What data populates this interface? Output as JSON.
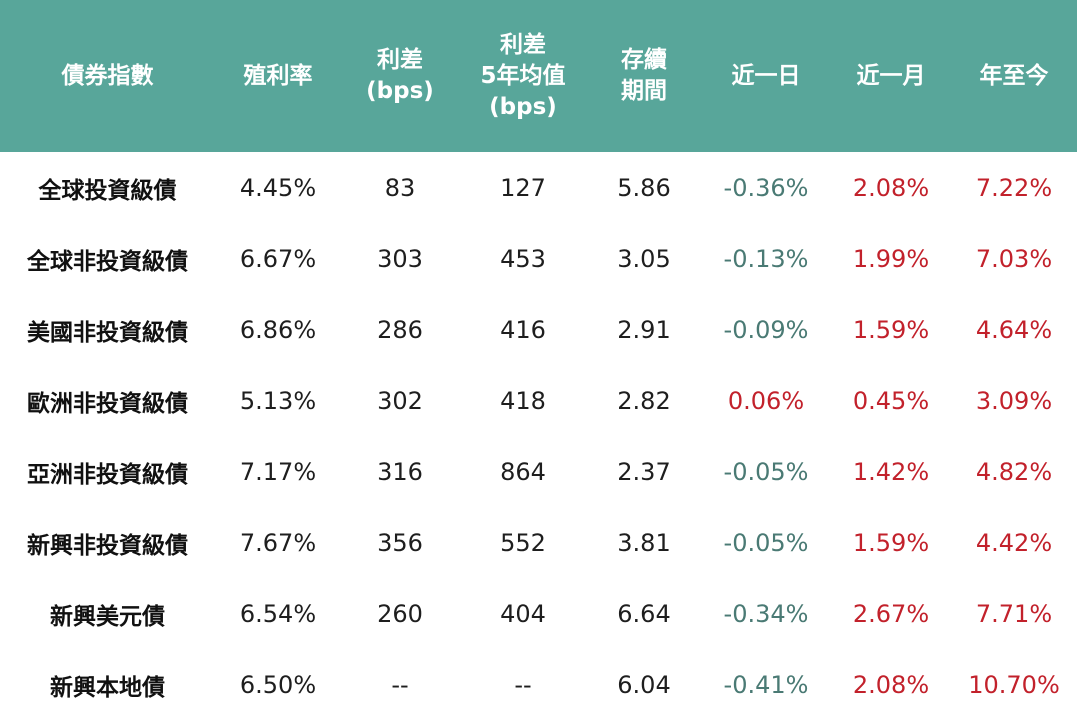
{
  "colors": {
    "header_bg": "#58a69a",
    "negative": "#4a7a74",
    "positive": "#c2212b"
  },
  "headers": [
    [
      "債券指數"
    ],
    [
      "殖利率"
    ],
    [
      "利差",
      "(bps)"
    ],
    [
      "利差",
      "5年均值",
      "(bps)"
    ],
    [
      "存續",
      "期間"
    ],
    [
      "近一日"
    ],
    [
      "近一月"
    ],
    [
      "年至今"
    ]
  ],
  "rows": [
    [
      "全球投資級債",
      "4.45%",
      "83",
      "127",
      "5.86",
      "-0.36%",
      "2.08%",
      "7.22%"
    ],
    [
      "全球非投資級債",
      "6.67%",
      "303",
      "453",
      "3.05",
      "-0.13%",
      "1.99%",
      "7.03%"
    ],
    [
      "美國非投資級債",
      "6.86%",
      "286",
      "416",
      "2.91",
      "-0.09%",
      "1.59%",
      "4.64%"
    ],
    [
      "歐洲非投資級債",
      "5.13%",
      "302",
      "418",
      "2.82",
      "0.06%",
      "0.45%",
      "3.09%"
    ],
    [
      "亞洲非投資級債",
      "7.17%",
      "316",
      "864",
      "2.37",
      "-0.05%",
      "1.42%",
      "4.82%"
    ],
    [
      "新興非投資級債",
      "7.67%",
      "356",
      "552",
      "3.81",
      "-0.05%",
      "1.59%",
      "4.42%"
    ],
    [
      "新興美元債",
      "6.54%",
      "260",
      "404",
      "6.64",
      "-0.34%",
      "2.67%",
      "7.71%"
    ],
    [
      "新興本地債",
      "6.50%",
      "--",
      "--",
      "6.04",
      "-0.41%",
      "2.08%",
      "10.70%"
    ]
  ]
}
